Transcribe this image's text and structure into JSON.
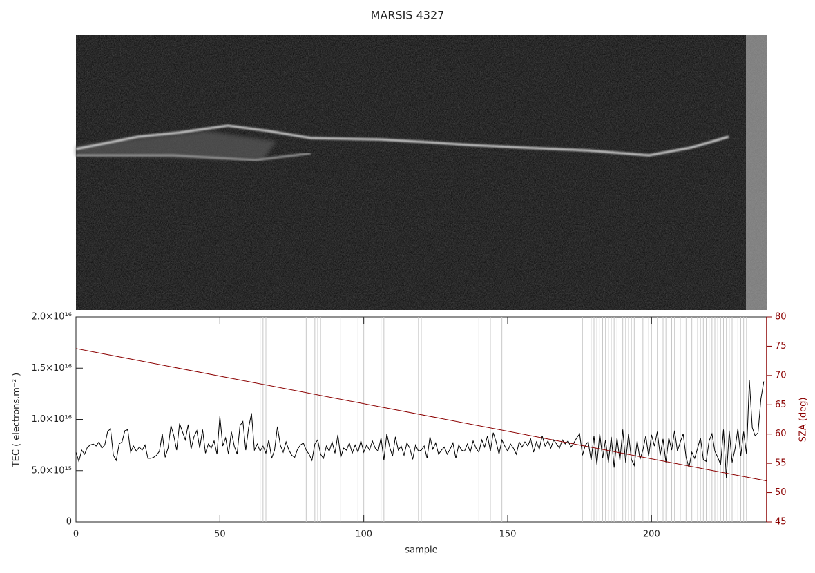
{
  "chart_data": {
    "type": "line",
    "title": "MARSIS 4327",
    "x_label": "sample",
    "y_label": "TEC ( electrons.m⁻² )",
    "y2_label": "SZA (deg)",
    "xlim": [
      0,
      240
    ],
    "xticks": [
      0,
      50,
      100,
      150,
      200
    ],
    "ylim": [
      0,
      2e+16
    ],
    "yticks": [
      0,
      {
        "value": 5000000000000000.0,
        "label": "5.0×10¹⁵"
      },
      {
        "value": 1e+16,
        "label": "1.0×10¹⁶"
      },
      {
        "value": 1.5e+16,
        "label": "1.5×10¹⁶"
      },
      {
        "value": 2e+16,
        "label": "2.0×10¹⁶"
      }
    ],
    "y2lim": [
      45,
      80
    ],
    "y2ticks": [
      45,
      50,
      55,
      60,
      65,
      70,
      75,
      80
    ],
    "vlines": [
      64,
      65,
      66,
      80,
      81,
      83,
      84,
      85,
      92,
      98,
      99,
      100,
      106,
      107,
      119,
      120,
      140,
      144,
      147,
      148,
      176,
      179,
      180,
      181,
      182,
      183,
      184,
      185,
      186,
      187,
      188,
      189,
      190,
      191,
      192,
      193,
      194,
      195,
      197,
      199,
      200,
      202,
      204,
      205,
      207,
      208,
      210,
      212,
      213,
      214,
      216,
      217,
      218,
      219,
      220,
      221,
      222,
      223,
      224,
      225,
      226,
      227,
      228,
      230,
      231,
      232,
      233
    ],
    "series": [
      {
        "name": "TEC",
        "color": "#000000",
        "values": [
          6800000000000000.0,
          5900000000000000.0,
          7000000000000000.0,
          6600000000000000.0,
          7300000000000000.0,
          7500000000000000.0,
          7600000000000000.0,
          7400000000000000.0,
          7800000000000000.0,
          7200000000000000.0,
          7500000000000000.0,
          8800000000000000.0,
          9100000000000000.0,
          6500000000000000.0,
          6000000000000000.0,
          7600000000000000.0,
          7800000000000000.0,
          8900000000000000.0,
          9000000000000000.0,
          6800000000000000.0,
          7400000000000000.0,
          6900000000000000.0,
          7300000000000000.0,
          7000000000000000.0,
          7500000000000000.0,
          6200000000000000.0,
          6200000000000000.0,
          6300000000000000.0,
          6500000000000000.0,
          6900000000000000.0,
          8600000000000000.0,
          6300000000000000.0,
          7200000000000000.0,
          9400000000000000.0,
          8400000000000000.0,
          7000000000000000.0,
          9600000000000000.0,
          8800000000000000.0,
          8000000000000000.0,
          9500000000000000.0,
          7100000000000000.0,
          8300000000000000.0,
          8900000000000000.0,
          7200000000000000.0,
          9000000000000000.0,
          6700000000000000.0,
          7600000000000000.0,
          7200000000000000.0,
          7900000000000000.0,
          6600000000000000.0,
          1.03e+16,
          7400000000000000.0,
          8200000000000000.0,
          6600000000000000.0,
          8800000000000000.0,
          7400000000000000.0,
          6600000000000000.0,
          9400000000000000.0,
          9800000000000000.0,
          7000000000000000.0,
          9200000000000000.0,
          1.06e+16,
          7000000000000000.0,
          7600000000000000.0,
          6900000000000000.0,
          7400000000000000.0,
          6700000000000000.0,
          8000000000000000.0,
          6200000000000000.0,
          7000000000000000.0,
          9300000000000000.0,
          7500000000000000.0,
          6800000000000000.0,
          7800000000000000.0,
          7000000000000000.0,
          6500000000000000.0,
          6300000000000000.0,
          7100000000000000.0,
          7500000000000000.0,
          7700000000000000.0,
          7000000000000000.0,
          6600000000000000.0,
          6000000000000000.0,
          7600000000000000.0,
          8000000000000000.0,
          6600000000000000.0,
          6200000000000000.0,
          7400000000000000.0,
          6900000000000000.0,
          7800000000000000.0,
          6700000000000000.0,
          8500000000000000.0,
          6300000000000000.0,
          7200000000000000.0,
          7000000000000000.0,
          7700000000000000.0,
          6700000000000000.0,
          7500000000000000.0,
          6800000000000000.0,
          7900000000000000.0,
          6800000000000000.0,
          7500000000000000.0,
          7000000000000000.0,
          7900000000000000.0,
          7200000000000000.0,
          6900000000000000.0,
          8200000000000000.0,
          6000000000000000.0,
          8600000000000000.0,
          7300000000000000.0,
          6400000000000000.0,
          8300000000000000.0,
          7000000000000000.0,
          7400000000000000.0,
          6500000000000000.0,
          7700000000000000.0,
          7200000000000000.0,
          6100000000000000.0,
          7500000000000000.0,
          6900000000000000.0,
          7000000000000000.0,
          7400000000000000.0,
          6200000000000000.0,
          8300000000000000.0,
          7100000000000000.0,
          7700000000000000.0,
          6600000000000000.0,
          7000000000000000.0,
          7300000000000000.0,
          6600000000000000.0,
          7100000000000000.0,
          7700000000000000.0,
          6200000000000000.0,
          7500000000000000.0,
          7000000000000000.0,
          6900000000000000.0,
          7600000000000000.0,
          6800000000000000.0,
          7900000000000000.0,
          7200000000000000.0,
          6800000000000000.0,
          8000000000000000.0,
          7300000000000000.0,
          8400000000000000.0,
          6900000000000000.0,
          8700000000000000.0,
          7800000000000000.0,
          6600000000000000.0,
          8000000000000000.0,
          7400000000000000.0,
          6900000000000000.0,
          7600000000000000.0,
          7200000000000000.0,
          6600000000000000.0,
          7800000000000000.0,
          7300000000000000.0,
          7800000000000000.0,
          7400000000000000.0,
          8100000000000000.0,
          6800000000000000.0,
          7800000000000000.0,
          7100000000000000.0,
          8400000000000000.0,
          7400000000000000.0,
          7900000000000000.0,
          7200000000000000.0,
          8000000000000000.0,
          7600000000000000.0,
          7200000000000000.0,
          8000000000000000.0,
          7600000000000000.0,
          7900000000000000.0,
          7300000000000000.0,
          7700000000000000.0,
          8200000000000000.0,
          8600000000000000.0,
          6500000000000000.0,
          7500000000000000.0,
          7800000000000000.0,
          6000000000000000.0,
          8400000000000000.0,
          5600000000000000.0,
          8600000000000000.0,
          6200000000000000.0,
          8000000000000000.0,
          5800000000000000.0,
          8300000000000000.0,
          5300000000000000.0,
          8200000000000000.0,
          6000000000000000.0,
          9000000000000000.0,
          5800000000000000.0,
          8600000000000000.0,
          6100000000000000.0,
          5500000000000000.0,
          7900000000000000.0,
          6100000000000000.0,
          7000000000000000.0,
          8400000000000000.0,
          6400000000000000.0,
          8500000000000000.0,
          7400000000000000.0,
          8800000000000000.0,
          6500000000000000.0,
          8100000000000000.0,
          5800000000000000.0,
          8200000000000000.0,
          7000000000000000.0,
          8900000000000000.0,
          6900000000000000.0,
          7800000000000000.0,
          8600000000000000.0,
          6300000000000000.0,
          5300000000000000.0,
          6800000000000000.0,
          6200000000000000.0,
          7200000000000000.0,
          8200000000000000.0,
          6100000000000000.0,
          5900000000000000.0,
          7900000000000000.0,
          8600000000000000.0,
          6900000000000000.0,
          6300000000000000.0,
          5600000000000000.0,
          9000000000000000.0,
          4300000000000000.0,
          8900000000000000.0,
          5800000000000000.0,
          7100000000000000.0,
          9100000000000000.0,
          6400000000000000.0,
          8800000000000000.0,
          6600000000000000.0,
          1.38e+16,
          9200000000000000.0,
          8400000000000000.0,
          8700000000000000.0,
          1.2e+16,
          1.37e+16
        ]
      },
      {
        "name": "SZA",
        "color": "#8b0000",
        "axis": "y2",
        "x": [
          0,
          240
        ],
        "values": [
          74.6,
          52.0
        ]
      }
    ]
  }
}
